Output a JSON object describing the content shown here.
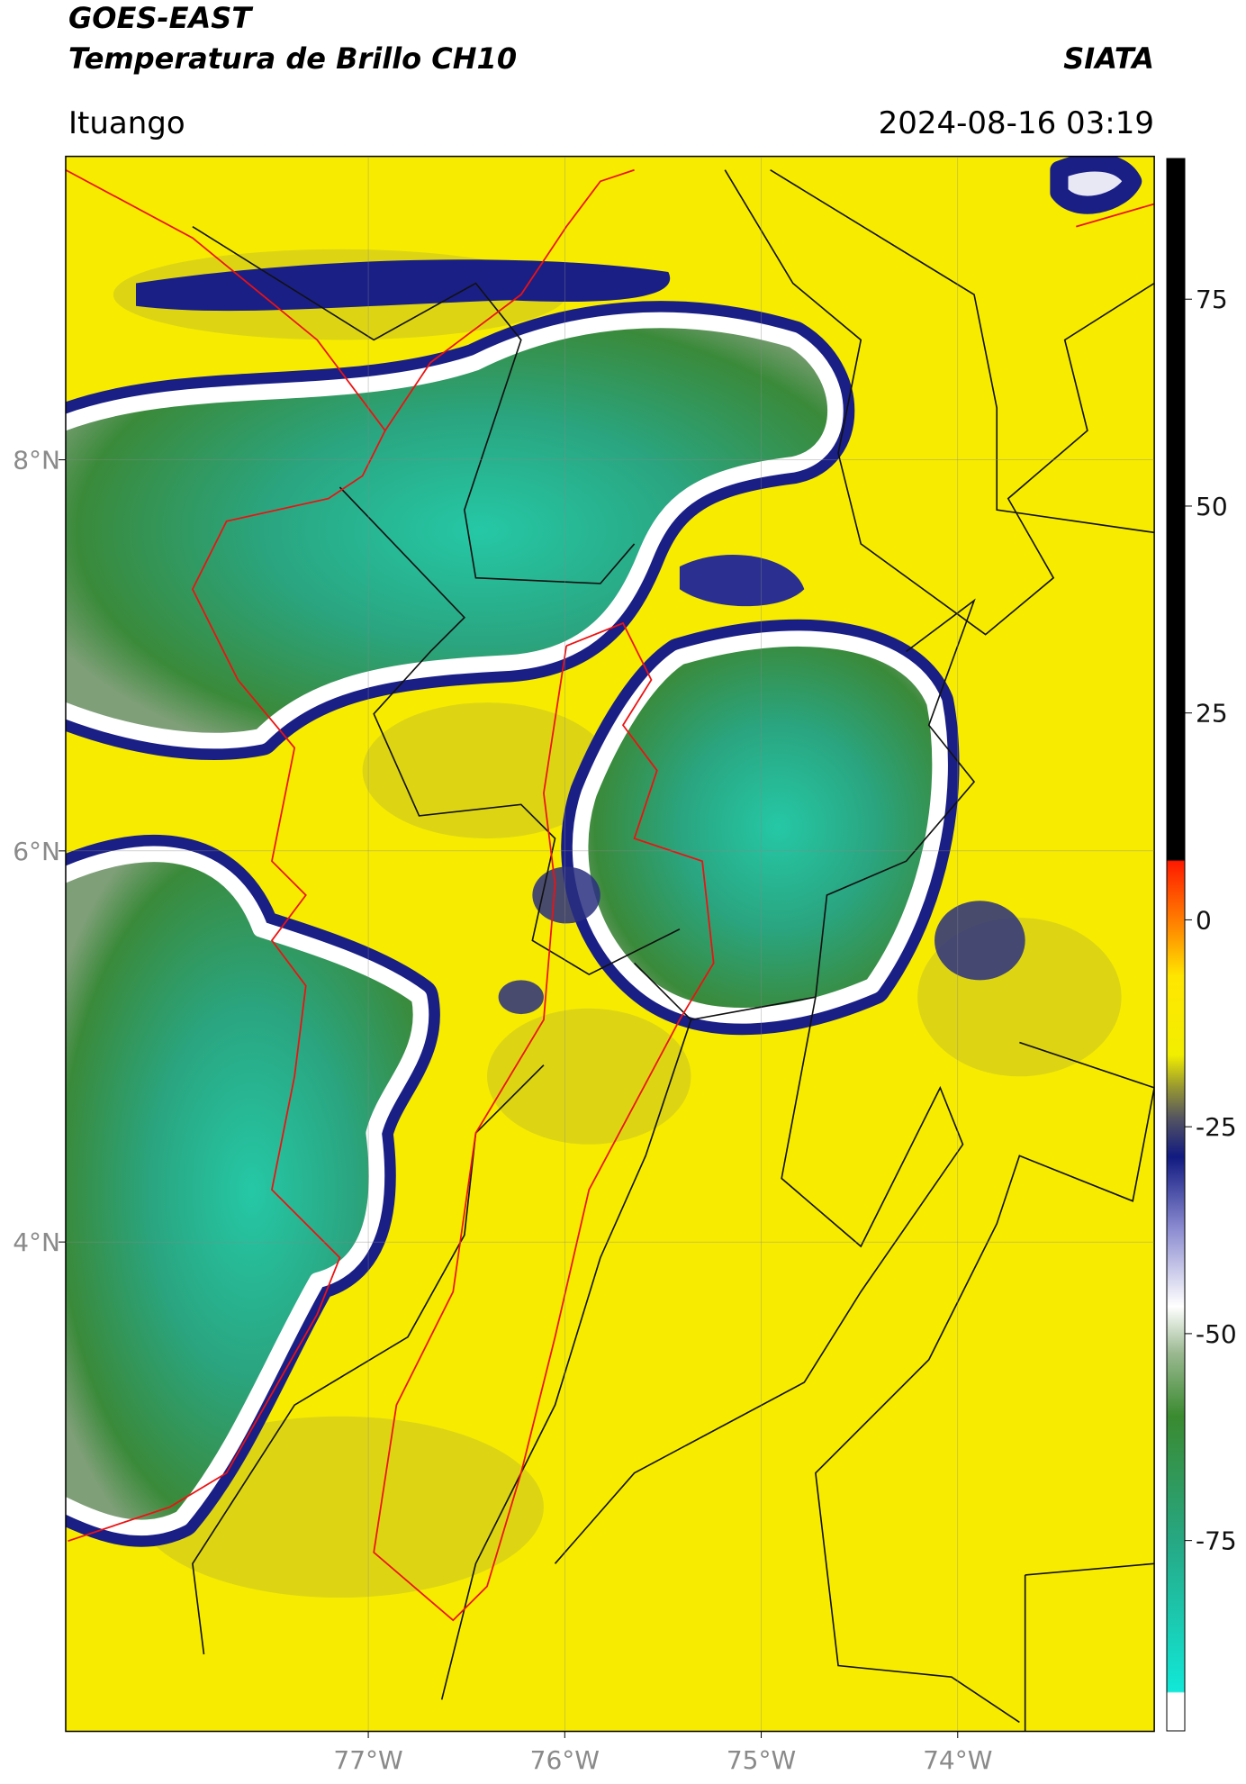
{
  "header": {
    "title": "GOES-EAST",
    "subtitle": "Temperatura de Brillo CH10",
    "source": "SIATA",
    "region": "Ituango",
    "datetime": "2024-08-16 03:19"
  },
  "map": {
    "xlim": [
      -78.54,
      -73.0
    ],
    "ylim": [
      1.5,
      9.55
    ],
    "grid": true,
    "lat_ticks": [
      {
        "value": 8,
        "label": "8°N"
      },
      {
        "value": 6,
        "label": "6°N"
      },
      {
        "value": 4,
        "label": "4°N"
      }
    ],
    "lon_ticks": [
      {
        "value": -77,
        "label": "77°W"
      },
      {
        "value": -76,
        "label": "76°W"
      },
      {
        "value": -75,
        "label": "75°W"
      },
      {
        "value": -74,
        "label": "74°W"
      }
    ],
    "colorbar": {
      "range": [
        -98,
        92
      ],
      "ticks": [
        75,
        50,
        25,
        0,
        -25,
        -50,
        -75
      ]
    }
  }
}
